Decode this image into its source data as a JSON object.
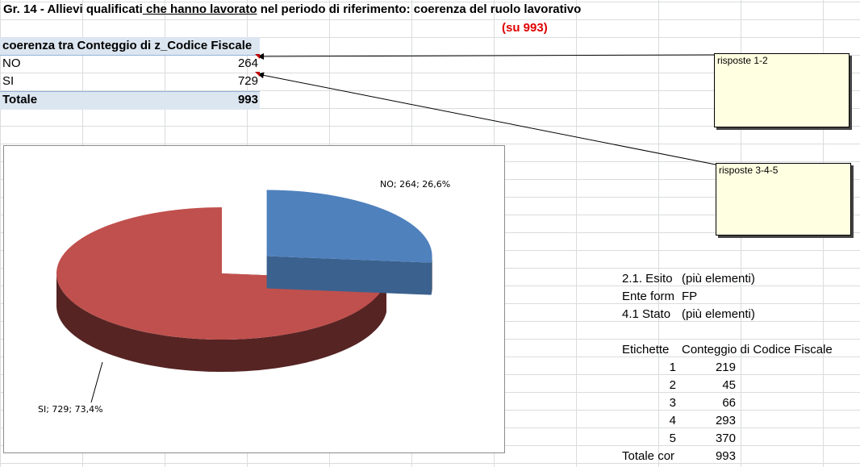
{
  "title": {
    "part1": "Gr. 14 - Allievi qualificati",
    "part2": " che hanno lavorato",
    "part3": " nel periodo di riferimento: coerenza del ruolo lavorativo"
  },
  "subtitle": "(su 993)",
  "pivot": {
    "header": "coerenza tra Conteggio di z_Codice Fiscale",
    "rows": [
      {
        "label": "NO",
        "value": "264"
      },
      {
        "label": "SI",
        "value": "729"
      }
    ],
    "total_label": "Totale",
    "total_value": "993"
  },
  "notes": [
    {
      "text": "risposte 1-2"
    },
    {
      "text": "risposte 3-4-5"
    }
  ],
  "filters": [
    {
      "label": "2.1. Esito",
      "value": "(più elementi)"
    },
    {
      "label": "Ente form",
      "value": "FP"
    },
    {
      "label": "4.1 Stato",
      "value": "(più elementi)"
    }
  ],
  "pivot2": {
    "header_label": "Etichette",
    "header_value": "Conteggio di Codice Fiscale",
    "rows": [
      {
        "label": "1",
        "value": "219"
      },
      {
        "label": "2",
        "value": "45"
      },
      {
        "label": "3",
        "value": "66"
      },
      {
        "label": "4",
        "value": "293"
      },
      {
        "label": "5",
        "value": "370"
      }
    ],
    "total_label": "Totale cor",
    "total_value": "993"
  },
  "chart_data": {
    "type": "pie",
    "categories": [
      "NO",
      "SI"
    ],
    "values": [
      264,
      729
    ],
    "percentages": [
      "26,6%",
      "73,4%"
    ],
    "data_labels": [
      "NO; 264; 26,6%",
      "SI; 729; 73,4%"
    ],
    "colors": [
      "#4f81bd",
      "#c0504d"
    ],
    "exploded": "NO"
  }
}
